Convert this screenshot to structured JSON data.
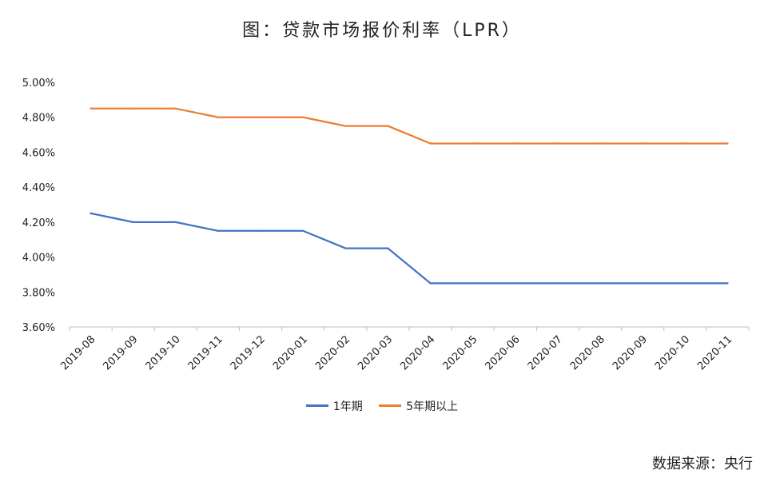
{
  "chart_data": {
    "type": "line",
    "title": "图：贷款市场报价利率（LPR）",
    "xlabel": "",
    "ylabel": "",
    "categories": [
      "2019-08",
      "2019-09",
      "2019-10",
      "2019-11",
      "2019-12",
      "2020-01",
      "2020-02",
      "2020-03",
      "2020-04",
      "2020-05",
      "2020-06",
      "2020-07",
      "2020-08",
      "2020-09",
      "2020-10",
      "2020-11"
    ],
    "y_ticks": [
      "3.60%",
      "3.80%",
      "4.00%",
      "4.20%",
      "4.40%",
      "4.60%",
      "4.80%",
      "5.00%"
    ],
    "ylim": [
      3.6,
      5.0
    ],
    "grid": false,
    "legend_position": "bottom",
    "series": [
      {
        "name": "1年期",
        "color": "#4472C4",
        "values": [
          4.25,
          4.2,
          4.2,
          4.15,
          4.15,
          4.15,
          4.05,
          4.05,
          3.85,
          3.85,
          3.85,
          3.85,
          3.85,
          3.85,
          3.85,
          3.85
        ]
      },
      {
        "name": "5年期以上",
        "color": "#ED7D31",
        "values": [
          4.85,
          4.85,
          4.85,
          4.8,
          4.8,
          4.8,
          4.75,
          4.75,
          4.65,
          4.65,
          4.65,
          4.65,
          4.65,
          4.65,
          4.65,
          4.65
        ]
      }
    ]
  },
  "source_note": "数据来源：央行"
}
